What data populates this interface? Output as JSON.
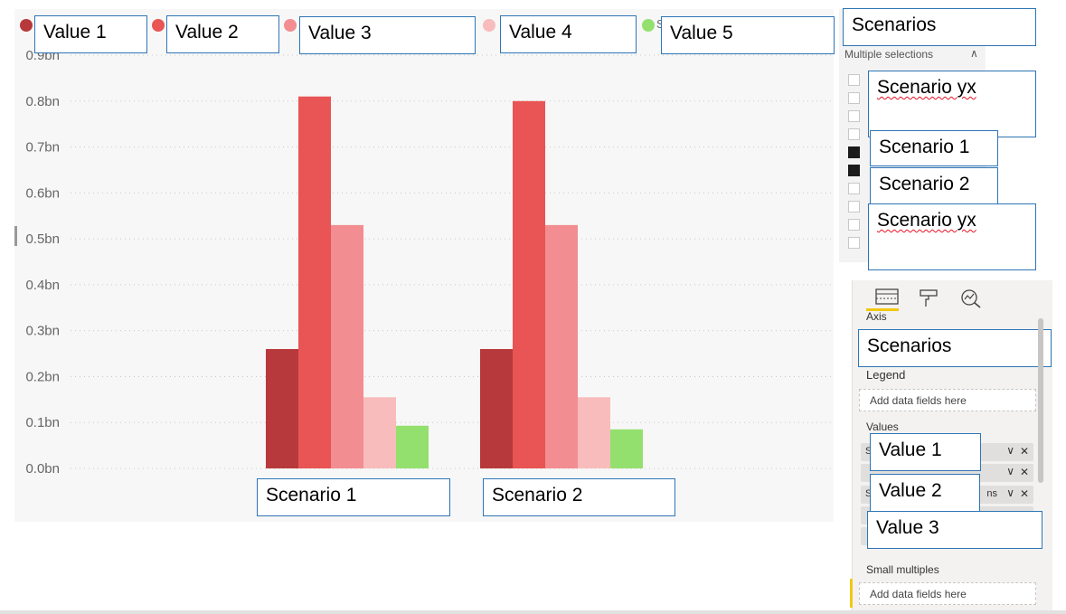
{
  "chart_data": {
    "type": "bar",
    "categories": [
      "Scenario 1",
      "Scenario 2"
    ],
    "series": [
      {
        "name": "Value 1",
        "color": "#b8393b",
        "values": [
          0.26,
          0.26
        ]
      },
      {
        "name": "Value 2",
        "color": "#e95454",
        "values": [
          0.81,
          0.8
        ]
      },
      {
        "name": "Value 3",
        "color": "#f28d91",
        "values": [
          0.53,
          0.53
        ]
      },
      {
        "name": "Value 4",
        "color": "#f8bcbc",
        "values": [
          0.155,
          0.155
        ]
      },
      {
        "name": "Value 5",
        "color": "#94e06e",
        "values": [
          0.093,
          0.085
        ]
      }
    ],
    "yticks": [
      "0.0bn",
      "0.1bn",
      "0.2bn",
      "0.3bn",
      "0.4bn",
      "0.5bn",
      "0.6bn",
      "0.7bn",
      "0.8bn",
      "0.9bn"
    ],
    "ylim": [
      0,
      0.9
    ],
    "unit": "bn",
    "grid": true,
    "legend_position": "top-left"
  },
  "legend": {
    "items": [
      {
        "label": "Value 1",
        "color": "#b8393b"
      },
      {
        "label": "Value 2",
        "color": "#e95454"
      },
      {
        "label": "Value 3",
        "color": "#f28d91"
      },
      {
        "label": "Value 4",
        "color": "#f8bcbc"
      },
      {
        "label": "Value 5",
        "color": "#94e06e"
      }
    ],
    "peek_letter": "S"
  },
  "callouts": {
    "slicer_title": "Scenarios",
    "slicer_item_1": "Scenario yx",
    "slicer_item_2": "Scenario 1",
    "slicer_item_3": "Scenario 2",
    "slicer_item_4": "Scenario yx",
    "axis_field": "Scenarios",
    "value_field_1": "Value 1",
    "value_field_2": "Value 2",
    "value_field_3": "Value 3"
  },
  "slicer": {
    "subtitle": "Multiple selections",
    "checkbox_states": [
      false,
      false,
      false,
      false,
      true,
      true,
      false,
      false,
      false,
      false
    ]
  },
  "pane": {
    "axis_label": "Axis",
    "legend_label": "Legend",
    "legend_placeholder": "Add data fields here",
    "values_label": "Values",
    "field_peek_prefix": "S",
    "field_peek_suffix": "ns",
    "small_multiples_label": "Small multiples",
    "small_multiples_placeholder": "Add data fields here",
    "accent_color": "#f2c811"
  }
}
